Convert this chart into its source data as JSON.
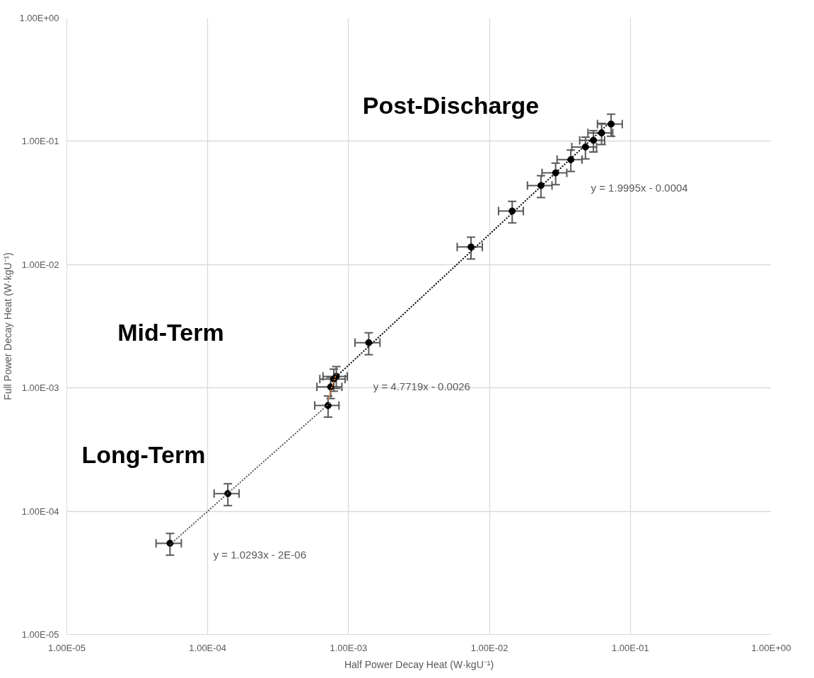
{
  "chart_data": {
    "type": "scatter",
    "xlabel": "Half Power Decay Heat (W·kgU⁻¹)",
    "ylabel": "Full Power Decay Heat (W·kgU⁻¹)",
    "log": "xy",
    "grid": true,
    "xlim": [
      1e-05,
      1
    ],
    "ylim": [
      1e-05,
      1
    ],
    "xticks": [
      {
        "value": 1e-05,
        "label": "1.00E-05"
      },
      {
        "value": 0.0001,
        "label": "1.00E-04"
      },
      {
        "value": 0.001,
        "label": "1.00E-03"
      },
      {
        "value": 0.01,
        "label": "1.00E-02"
      },
      {
        "value": 0.1,
        "label": "1.00E-01"
      },
      {
        "value": 1,
        "label": "1.00E+00"
      }
    ],
    "yticks": [
      {
        "value": 1e-05,
        "label": "1.00E-05"
      },
      {
        "value": 0.0001,
        "label": "1.00E-04"
      },
      {
        "value": 0.001,
        "label": "1.00E-03"
      },
      {
        "value": 0.01,
        "label": "1.00E-02"
      },
      {
        "value": 0.1,
        "label": "1.00E-01"
      },
      {
        "value": 1,
        "label": "1.00E+00"
      }
    ],
    "series": [
      {
        "color": "#000000",
        "marker": "circle",
        "x": [
          5.4e-05,
          0.000139,
          0.000715,
          0.000746,
          0.000785,
          0.000818,
          0.00139,
          0.0074,
          0.0145,
          0.0232,
          0.0295,
          0.0378,
          0.048,
          0.0547,
          0.0625,
          0.073
        ],
        "values": [
          5.5e-05,
          0.000139,
          0.00072,
          0.00102,
          0.00118,
          0.00124,
          0.00233,
          0.0139,
          0.0272,
          0.0438,
          0.0555,
          0.071,
          0.09,
          0.102,
          0.117,
          0.138
        ],
        "xerrors": [
          1.1e-05,
          2.8e-05,
          0.00014,
          0.00015,
          0.00016,
          0.00016,
          0.00028,
          0.0015,
          0.0029,
          0.0046,
          0.0059,
          0.0076,
          0.0096,
          0.011,
          0.0125,
          0.0146
        ],
        "errors": [
          1.1e-05,
          2.8e-05,
          0.00014,
          0.0002,
          0.00024,
          0.00025,
          0.00047,
          0.0028,
          0.0054,
          0.0088,
          0.011,
          0.014,
          0.018,
          0.02,
          0.023,
          0.028
        ]
      },
      {
        "type": "line",
        "color": "#595959",
        "marker": "none",
        "line_style": "dotted",
        "x": [
          5.4e-05,
          0.000746
        ],
        "values": [
          5.36e-05,
          0.000766
        ]
      },
      {
        "type": "line",
        "color": "#ed7d31",
        "marker": "none",
        "line_style": "dotted",
        "x": [
          0.000715,
          0.000818
        ],
        "values": [
          0.000812,
          0.0013
        ]
      },
      {
        "type": "line",
        "color": "#000000",
        "marker": "none",
        "line_style": "dotted",
        "x": [
          0.000818,
          0.073
        ],
        "values": [
          0.001236,
          0.1456
        ]
      }
    ],
    "annotations": [
      "Long-Term",
      "Mid-Term",
      "Post-Discharge",
      "y = 1.0293x - 2E-06",
      "y = 4.7719x - 0.0026",
      "y = 1.9995x - 0.0004"
    ]
  }
}
